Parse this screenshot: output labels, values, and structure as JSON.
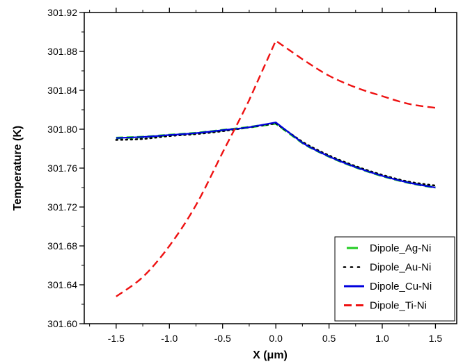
{
  "chart_data": {
    "type": "line",
    "title": "",
    "xlabel": "X (μm)",
    "ylabel": "Temperature (K)",
    "xlim": [
      -1.8,
      1.7
    ],
    "ylim": [
      301.6,
      301.92
    ],
    "x_ticks": [
      -1.5,
      -1.0,
      -0.5,
      0.0,
      0.5,
      1.0,
      1.5
    ],
    "x_tick_labels": [
      "-1.5",
      "-1.0",
      "-0.5",
      "0.0",
      "0.5",
      "1.0",
      "1.5"
    ],
    "y_ticks": [
      301.6,
      301.64,
      301.68,
      301.72,
      301.76,
      301.8,
      301.84,
      301.88,
      301.92
    ],
    "y_tick_labels": [
      "301.60",
      "301.64",
      "301.68",
      "301.72",
      "301.76",
      "301.80",
      "301.84",
      "301.88",
      "301.92"
    ],
    "grid": false,
    "legend_position": "bottom-right",
    "x": [
      -1.5,
      -1.25,
      -1.0,
      -0.75,
      -0.5,
      -0.25,
      0.0,
      0.25,
      0.5,
      0.75,
      1.0,
      1.25,
      1.5
    ],
    "series": [
      {
        "name": "Dipole_Ag-Ni",
        "color": "#22cc22",
        "style": "dash",
        "values": [
          301.791,
          301.792,
          301.794,
          301.796,
          301.799,
          301.802,
          301.806,
          301.786,
          301.772,
          301.761,
          301.752,
          301.745,
          301.74
        ]
      },
      {
        "name": "Dipole_Au-Ni",
        "color": "#000000",
        "style": "dot",
        "values": [
          301.789,
          301.79,
          301.793,
          301.795,
          301.798,
          301.802,
          301.806,
          301.787,
          301.773,
          301.762,
          301.753,
          301.746,
          301.742
        ]
      },
      {
        "name": "Dipole_Cu-Ni",
        "color": "#0000dd",
        "style": "solid",
        "values": [
          301.791,
          301.792,
          301.794,
          301.796,
          301.799,
          301.802,
          301.807,
          301.786,
          301.772,
          301.761,
          301.752,
          301.745,
          301.74
        ]
      },
      {
        "name": "Dipole_Ti-Ni",
        "color": "#ee1111",
        "style": "longdash",
        "values": [
          301.628,
          301.648,
          301.68,
          301.722,
          301.776,
          301.83,
          301.891,
          301.872,
          301.855,
          301.843,
          301.834,
          301.826,
          301.822
        ]
      }
    ]
  }
}
